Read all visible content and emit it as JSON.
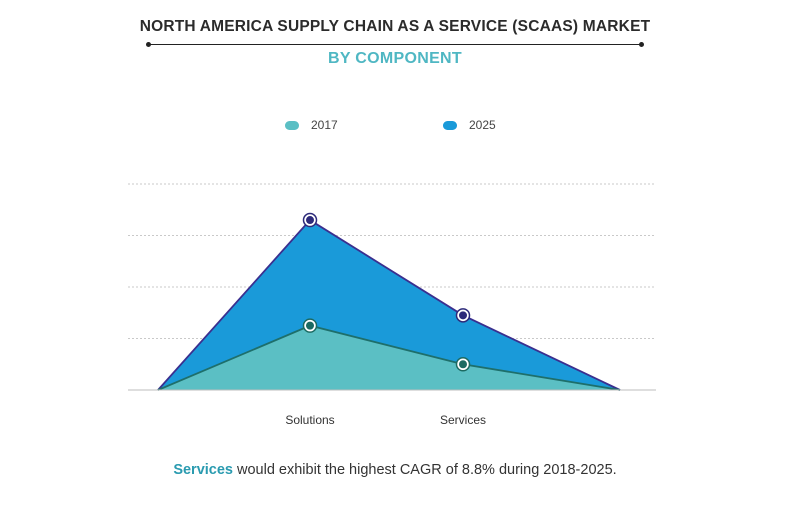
{
  "header": {
    "title": "NORTH AMERICA SUPPLY CHAIN AS A SERVICE (SCAAS) MARKET",
    "subtitle": "BY COMPONENT"
  },
  "legend": [
    {
      "label": "2017",
      "color": "#5bbfc4"
    },
    {
      "label": "2025",
      "color": "#1a9ad9"
    }
  ],
  "chart_data": {
    "type": "area",
    "categories": [
      "Solutions",
      "Services"
    ],
    "series": [
      {
        "name": "2025",
        "values": [
          3.3,
          1.45
        ],
        "color": "#1a9ad9",
        "line_color": "#3a2f8f",
        "marker_color": "#2d2a7a"
      },
      {
        "name": "2017",
        "values": [
          1.25,
          0.5
        ],
        "color": "#5bbfc4",
        "line_color": "#1e6f6b",
        "marker_color": "#1c6a62"
      }
    ],
    "ylim": [
      0,
      4
    ],
    "grid": true,
    "legend_position": "top"
  },
  "footnote": {
    "highlight": "Services",
    "text": " would exhibit the highest CAGR of 8.8% during 2018-2025."
  }
}
